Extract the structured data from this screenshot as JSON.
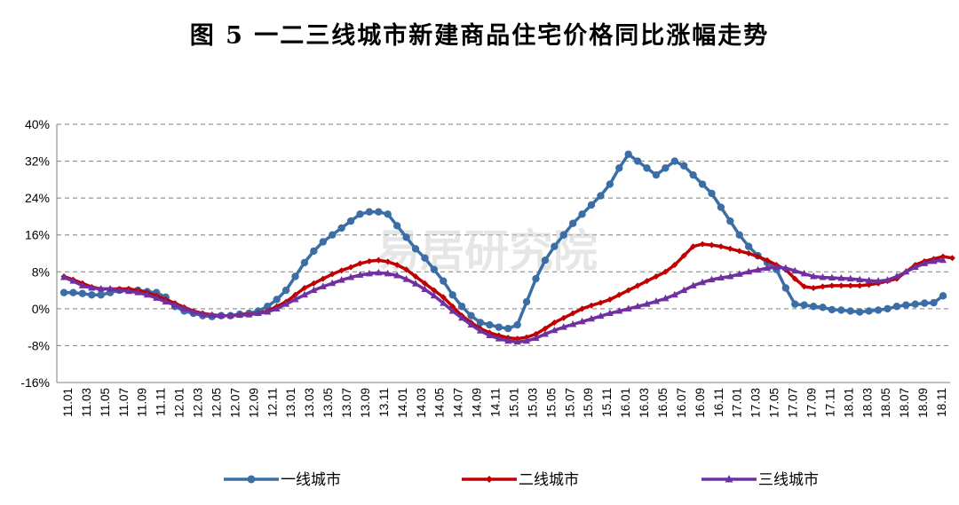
{
  "chart_data": {
    "type": "line",
    "title": "图 5    一二三线城市新建商品住宅价格同比涨幅走势",
    "watermark": "易居研究院",
    "ylim": [
      -16,
      40
    ],
    "yticks": [
      "40%",
      "32%",
      "24%",
      "16%",
      "8%",
      "0%",
      "-8%",
      "-16%"
    ],
    "grid": "horizontal dashed",
    "legend_position": "bottom",
    "x_labels": [
      "11.01",
      "11.03",
      "11.05",
      "11.07",
      "11.09",
      "11.11",
      "12.01",
      "12.03",
      "12.05",
      "12.07",
      "12.09",
      "12.11",
      "13.01",
      "13.03",
      "13.05",
      "13.07",
      "13.09",
      "13.11",
      "14.01",
      "14.03",
      "14.05",
      "14.07",
      "14.09",
      "14.11",
      "15.01",
      "15.03",
      "15.05",
      "15.07",
      "15.09",
      "15.11",
      "16.01",
      "16.03",
      "16.05",
      "16.07",
      "16.09",
      "16.11",
      "17.01",
      "17.03",
      "17.05",
      "17.07",
      "17.09",
      "17.11",
      "18.01",
      "18.03",
      "18.05",
      "18.07",
      "18.09",
      "18.11"
    ],
    "series": [
      {
        "name": "一线城市",
        "color": "#3a6ea5",
        "marker": "circle",
        "values": [
          3.5,
          3.5,
          3.3,
          3.0,
          3.0,
          3.5,
          4.0,
          4.0,
          4.0,
          3.7,
          3.5,
          2.5,
          0.5,
          -0.5,
          -1.0,
          -1.5,
          -1.7,
          -1.5,
          -1.5,
          -1.2,
          -1.0,
          -0.5,
          0.5,
          2.0,
          4.0,
          7.0,
          10.0,
          12.5,
          14.5,
          16.0,
          17.5,
          19.0,
          20.5,
          21.0,
          21.0,
          20.5,
          18.0,
          15.5,
          13.0,
          11.0,
          8.5,
          6.0,
          3.0,
          0.5,
          -1.5,
          -3.0,
          -3.5,
          -4.0,
          -4.3,
          -3.5,
          1.5,
          6.5,
          10.5,
          13.5,
          16.0,
          18.5,
          20.5,
          22.5,
          24.5,
          27.0,
          30.5,
          33.5,
          32.0,
          30.5,
          29.0,
          30.5,
          32.0,
          31.0,
          29.0,
          27.0,
          25.0,
          22.0,
          19.0,
          16.0,
          13.5,
          11.5,
          10.0,
          8.5,
          4.5,
          1.0,
          0.8,
          0.5,
          0.3,
          -0.2,
          -0.3,
          -0.5,
          -0.7,
          -0.5,
          -0.3,
          0.0,
          0.5,
          0.8,
          1.0,
          1.2,
          1.3,
          2.8
        ],
        "line_width": 3.5
      },
      {
        "name": "二线城市",
        "color": "#c00000",
        "marker": "diamond",
        "values": [
          7.0,
          6.3,
          5.5,
          4.7,
          4.3,
          4.3,
          4.3,
          4.3,
          4.0,
          3.5,
          2.8,
          2.0,
          1.2,
          0.3,
          -0.5,
          -1.0,
          -1.3,
          -1.5,
          -1.5,
          -1.3,
          -1.2,
          -1.0,
          -0.5,
          0.5,
          1.5,
          3.0,
          4.5,
          5.5,
          6.5,
          7.5,
          8.3,
          9.0,
          9.8,
          10.3,
          10.5,
          10.2,
          9.5,
          8.5,
          7.0,
          5.5,
          4.0,
          2.5,
          0.5,
          -1.5,
          -3.0,
          -4.3,
          -5.2,
          -5.8,
          -6.3,
          -6.5,
          -6.2,
          -5.5,
          -4.3,
          -3.0,
          -2.0,
          -1.0,
          0.0,
          0.7,
          1.3,
          2.0,
          3.0,
          4.0,
          5.0,
          6.0,
          7.0,
          8.0,
          9.5,
          11.5,
          13.5,
          14.0,
          13.8,
          13.5,
          13.0,
          12.5,
          12.0,
          11.3,
          10.5,
          9.5,
          8.5,
          6.5,
          4.8,
          4.5,
          4.8,
          5.0,
          5.0,
          5.0,
          5.0,
          5.2,
          5.5,
          6.0,
          6.5,
          8.0,
          9.5,
          10.3,
          10.8,
          11.3,
          11.0
        ],
        "line_width": 3.5
      },
      {
        "name": "三线城市",
        "color": "#7030a0",
        "marker": "triangle",
        "values": [
          6.8,
          6.0,
          5.0,
          4.5,
          4.3,
          4.3,
          4.0,
          3.8,
          3.5,
          3.0,
          2.3,
          1.5,
          0.8,
          0.0,
          -0.7,
          -1.2,
          -1.4,
          -1.5,
          -1.5,
          -1.4,
          -1.3,
          -1.0,
          -0.7,
          0.0,
          1.0,
          2.0,
          3.0,
          4.0,
          4.8,
          5.5,
          6.2,
          6.8,
          7.3,
          7.6,
          7.8,
          7.6,
          7.2,
          6.4,
          5.4,
          4.2,
          2.8,
          1.2,
          -0.5,
          -2.0,
          -3.5,
          -4.8,
          -5.8,
          -6.5,
          -7.0,
          -7.2,
          -7.0,
          -6.4,
          -5.5,
          -4.7,
          -4.0,
          -3.4,
          -2.8,
          -2.2,
          -1.6,
          -1.0,
          -0.5,
          0.0,
          0.5,
          1.0,
          1.6,
          2.2,
          3.0,
          4.0,
          5.0,
          5.7,
          6.3,
          6.7,
          7.0,
          7.5,
          8.0,
          8.4,
          8.8,
          9.0,
          8.8,
          8.2,
          7.6,
          7.0,
          6.8,
          6.7,
          6.6,
          6.5,
          6.3,
          6.1,
          6.0,
          6.2,
          7.0,
          8.0,
          9.0,
          9.8,
          10.3,
          10.5
        ],
        "line_width": 3.5
      }
    ]
  }
}
